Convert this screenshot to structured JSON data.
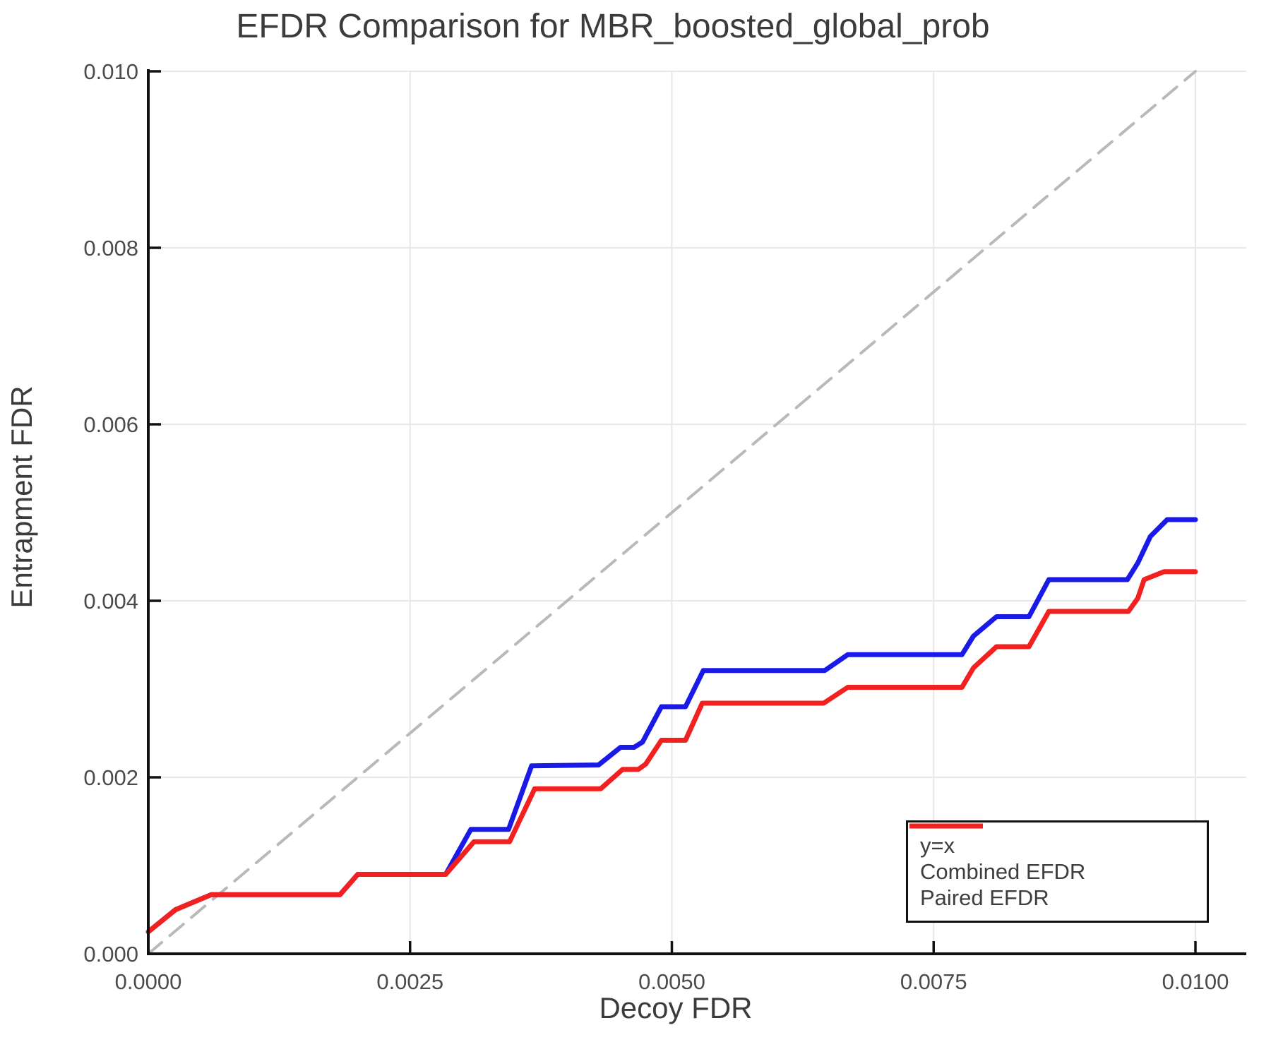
{
  "chart_data": {
    "type": "line",
    "title": "EFDR Comparison for MBR_boosted_global_prob",
    "xlabel": "Decoy FDR",
    "ylabel": "Entrapment FDR",
    "xlim": [
      0,
      0.01046
    ],
    "ylim": [
      0,
      0.01
    ],
    "grid": true,
    "x_ticks": {
      "values": [
        0,
        0.0025,
        0.005,
        0.0075,
        0.01
      ],
      "labels": [
        "0.0000",
        "0.0025",
        "0.0050",
        "0.0075",
        "0.0100"
      ]
    },
    "y_ticks": {
      "values": [
        0,
        0.002,
        0.004,
        0.006,
        0.008,
        0.01
      ],
      "labels": [
        "0.000",
        "0.002",
        "0.004",
        "0.006",
        "0.008",
        "0.010"
      ]
    },
    "colors": {
      "grid": "#e7e7e7",
      "spine": "#111111",
      "tick_label": "#4b4b4b",
      "text": "#3b3b3b"
    },
    "legend": {
      "position": "lower right",
      "entries": [
        {
          "label": "y=x"
        },
        {
          "label": "Combined EFDR"
        },
        {
          "label": "Paired EFDR"
        }
      ]
    },
    "series": [
      {
        "name": "y=x",
        "key": "y-equals-x",
        "style": "dashed",
        "color": "#b9b9b9",
        "width": 4,
        "points": [
          [
            0,
            0
          ],
          [
            0.01,
            0.01
          ]
        ]
      },
      {
        "name": "Combined EFDR",
        "key": "combined-efdr",
        "style": "solid",
        "color": "#1a1ae8",
        "width": 7,
        "points": [
          [
            0,
            0.00025
          ],
          [
            0.00026,
            0.0005
          ],
          [
            0.0006,
            0.00067
          ],
          [
            0.00183,
            0.00067
          ],
          [
            0.002,
            0.0009
          ],
          [
            0.00284,
            0.0009
          ],
          [
            0.00308,
            0.00141
          ],
          [
            0.00344,
            0.00141
          ],
          [
            0.00366,
            0.00213
          ],
          [
            0.0043,
            0.00214
          ],
          [
            0.00451,
            0.00234
          ],
          [
            0.00464,
            0.00234
          ],
          [
            0.00472,
            0.0024
          ],
          [
            0.0049,
            0.0028
          ],
          [
            0.00513,
            0.0028
          ],
          [
            0.0053,
            0.00321
          ],
          [
            0.00646,
            0.00321
          ],
          [
            0.00668,
            0.00339
          ],
          [
            0.00777,
            0.00339
          ],
          [
            0.00788,
            0.0036
          ],
          [
            0.0081,
            0.00382
          ],
          [
            0.00841,
            0.00382
          ],
          [
            0.0086,
            0.00424
          ],
          [
            0.00935,
            0.00424
          ],
          [
            0.00945,
            0.00443
          ],
          [
            0.00957,
            0.00473
          ],
          [
            0.00973,
            0.00492
          ],
          [
            0.01,
            0.00492
          ]
        ]
      },
      {
        "name": "Paired EFDR",
        "key": "paired-efdr",
        "style": "solid",
        "color": "#f32020",
        "width": 7,
        "points": [
          [
            0,
            0.00025
          ],
          [
            0.00026,
            0.0005
          ],
          [
            0.0006,
            0.00067
          ],
          [
            0.00183,
            0.00067
          ],
          [
            0.002,
            0.0009
          ],
          [
            0.00284,
            0.0009
          ],
          [
            0.00311,
            0.00127
          ],
          [
            0.00345,
            0.00127
          ],
          [
            0.00369,
            0.00187
          ],
          [
            0.00432,
            0.00187
          ],
          [
            0.00453,
            0.00209
          ],
          [
            0.00468,
            0.00209
          ],
          [
            0.00475,
            0.00215
          ],
          [
            0.0049,
            0.00242
          ],
          [
            0.00513,
            0.00242
          ],
          [
            0.00529,
            0.00284
          ],
          [
            0.00645,
            0.00284
          ],
          [
            0.00668,
            0.00302
          ],
          [
            0.00777,
            0.00302
          ],
          [
            0.00788,
            0.00324
          ],
          [
            0.0081,
            0.00348
          ],
          [
            0.00841,
            0.00348
          ],
          [
            0.0086,
            0.00388
          ],
          [
            0.00936,
            0.00388
          ],
          [
            0.00945,
            0.00403
          ],
          [
            0.00951,
            0.00424
          ],
          [
            0.0097,
            0.00433
          ],
          [
            0.01,
            0.00433
          ]
        ]
      }
    ]
  }
}
